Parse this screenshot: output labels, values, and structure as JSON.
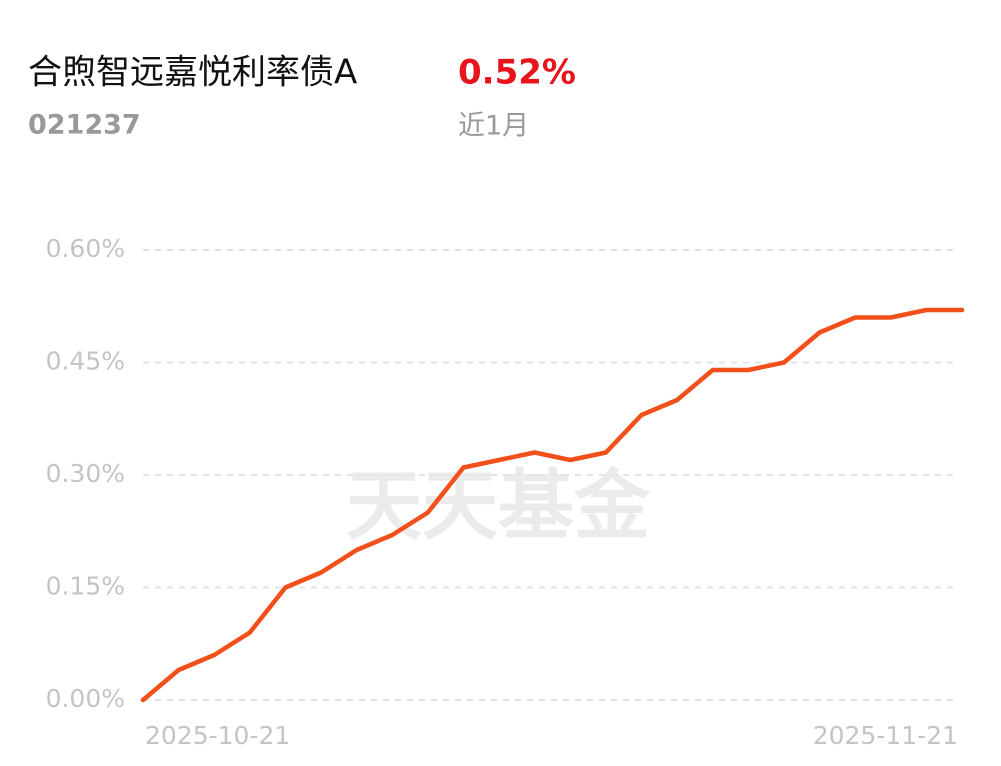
{
  "chart_data": {
    "type": "line",
    "title": "合煦智远嘉悦利率债A",
    "subtitle": "021237",
    "return": {
      "value": 0.52,
      "label": "0.52%"
    },
    "period": "近1月",
    "watermark": "天天基金",
    "categories": [
      "2025-10-21",
      null,
      null,
      null,
      null,
      null,
      null,
      null,
      null,
      null,
      null,
      null,
      null,
      null,
      null,
      null,
      null,
      null,
      null,
      null,
      null,
      null,
      null,
      "2025-11-21"
    ],
    "series": [
      {
        "name": "合煦智远嘉悦利率债A",
        "color": "#f2501a",
        "values": [
          0,
          0.04,
          0.06,
          0.09,
          0.15,
          0.17,
          0.2,
          0.22,
          0.25,
          0.31,
          0.32,
          0.33,
          0.32,
          0.33,
          0.38,
          0.4,
          0.44,
          0.44,
          0.45,
          0.49,
          0.51,
          0.51,
          0.52,
          0.52
        ]
      }
    ],
    "ylim": [
      0,
      0.6
    ],
    "yticks": [
      {
        "value": 0,
        "label": "0.00%"
      },
      {
        "value": 0.15,
        "label": "0.15%"
      },
      {
        "value": 0.3,
        "label": "0.30%"
      },
      {
        "value": 0.45,
        "label": "0.45%"
      },
      {
        "value": 0.6,
        "label": "0.60%"
      }
    ],
    "grid": true
  }
}
